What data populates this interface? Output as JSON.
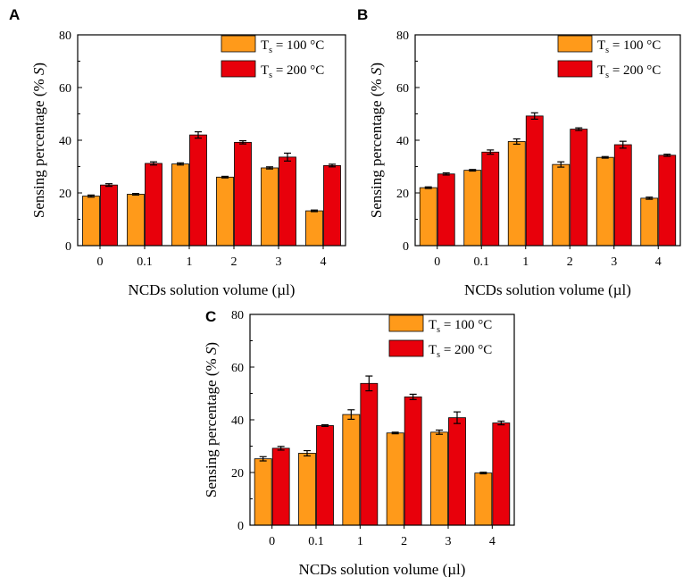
{
  "chart_data": [
    {
      "panel": "A",
      "type": "bar",
      "categories": [
        "0",
        "0.1",
        "1",
        "2",
        "3",
        "4"
      ],
      "series": [
        {
          "name": "Ts = 100 °C",
          "label_main": "T",
          "label_sub": "s",
          "label_rest": " = 100 °C",
          "color": "#FF9A1A",
          "values": [
            18.8,
            19.5,
            31.0,
            26.0,
            29.5,
            13.2
          ],
          "errors": [
            0.4,
            0.3,
            0.4,
            0.3,
            0.4,
            0.3
          ]
        },
        {
          "name": "Ts = 200 °C",
          "label_main": "T",
          "label_sub": "s",
          "label_rest": " = 200 °C",
          "color": "#E8000B",
          "values": [
            23.0,
            31.2,
            42.0,
            39.2,
            33.6,
            30.4
          ],
          "errors": [
            0.5,
            0.6,
            1.2,
            0.6,
            1.5,
            0.5
          ]
        }
      ],
      "xlabel": "NCDs solution volume (µl)",
      "ylabel_pre": "Sensing percentage (% ",
      "ylabel_italic": "S",
      "ylabel_post": ")",
      "ylim": [
        0,
        80
      ],
      "yticks": [
        "0",
        "20",
        "40",
        "60",
        "80"
      ]
    },
    {
      "panel": "B",
      "type": "bar",
      "categories": [
        "0",
        "0.1",
        "1",
        "2",
        "3",
        "4"
      ],
      "series": [
        {
          "name": "Ts = 100 °C",
          "label_main": "T",
          "label_sub": "s",
          "label_rest": " = 100 °C",
          "color": "#FF9A1A",
          "values": [
            22.0,
            28.6,
            39.5,
            30.8,
            33.5,
            18.0
          ],
          "errors": [
            0.3,
            0.3,
            1.0,
            1.0,
            0.3,
            0.4
          ]
        },
        {
          "name": "Ts = 200 °C",
          "label_main": "T",
          "label_sub": "s",
          "label_rest": " = 200 °C",
          "color": "#E8000B",
          "values": [
            27.2,
            35.5,
            49.2,
            44.2,
            38.3,
            34.3
          ],
          "errors": [
            0.4,
            0.8,
            1.2,
            0.5,
            1.3,
            0.4
          ]
        }
      ],
      "xlabel": "NCDs solution volume (µl)",
      "ylabel_pre": "Sensing percentage (% ",
      "ylabel_italic": "S",
      "ylabel_post": ")",
      "ylim": [
        0,
        80
      ],
      "yticks": [
        "0",
        "20",
        "40",
        "60",
        "80"
      ]
    },
    {
      "panel": "C",
      "type": "bar",
      "categories": [
        "0",
        "0.1",
        "1",
        "2",
        "3",
        "4"
      ],
      "series": [
        {
          "name": "Ts = 100 °C",
          "label_main": "T",
          "label_sub": "s",
          "label_rest": " = 100 °C",
          "color": "#FF9A1A",
          "values": [
            25.2,
            27.3,
            42.0,
            35.0,
            35.3,
            19.8
          ],
          "errors": [
            0.8,
            1.0,
            1.8,
            0.3,
            0.8,
            0.3
          ]
        },
        {
          "name": "Ts = 200 °C",
          "label_main": "T",
          "label_sub": "s",
          "label_rest": " = 200 °C",
          "color": "#E8000B",
          "values": [
            29.2,
            37.8,
            53.8,
            48.7,
            40.8,
            38.8
          ],
          "errors": [
            0.7,
            0.3,
            2.8,
            1.0,
            2.2,
            0.7
          ]
        }
      ],
      "xlabel": "NCDs solution volume (µl)",
      "ylabel_pre": "Sensing percentage (% ",
      "ylabel_italic": "S",
      "ylabel_post": ")",
      "ylim": [
        0,
        80
      ],
      "yticks": [
        "0",
        "20",
        "40",
        "60",
        "80"
      ]
    }
  ]
}
